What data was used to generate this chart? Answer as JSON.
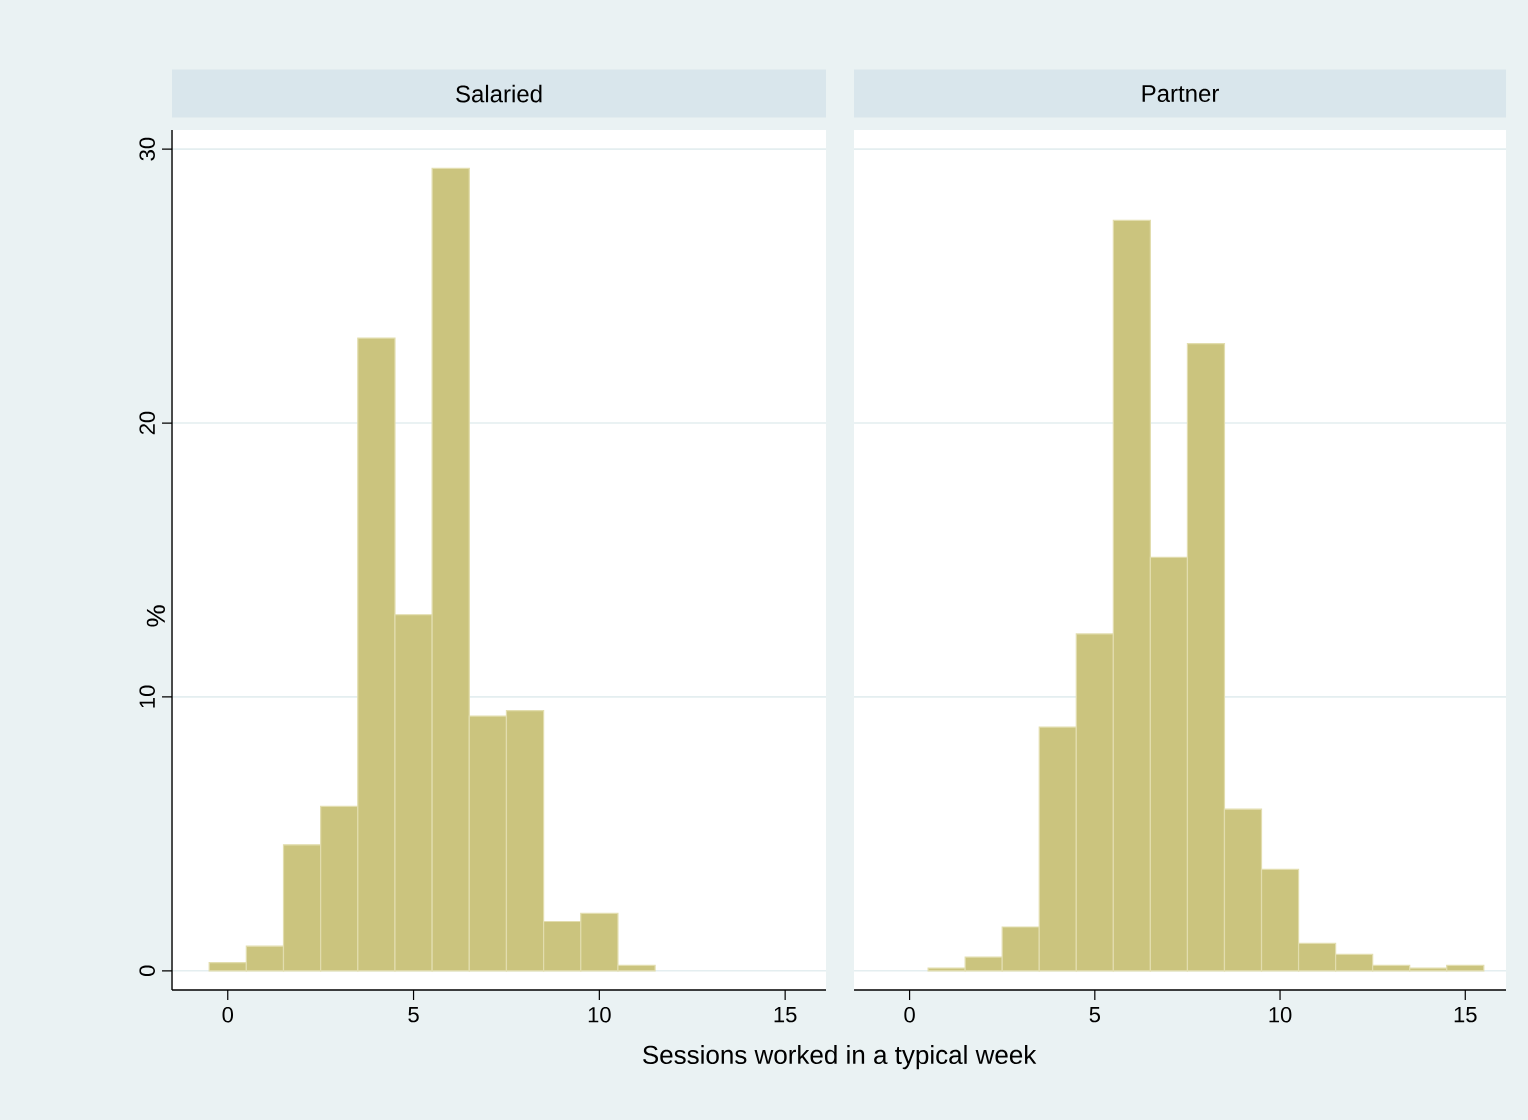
{
  "chart_data": [
    {
      "type": "histogram",
      "title": "Salaried",
      "xlabel": "Sessions worked in a typical week",
      "ylabel": "%",
      "bins": [
        -0.5,
        0.5,
        1.5,
        2.5,
        3.5,
        4.5,
        5.5,
        6.5,
        7.5,
        8.5,
        9.5,
        10.5,
        11.5
      ],
      "values": [
        0.3,
        0.9,
        4.6,
        6.0,
        23.1,
        13.0,
        29.3,
        9.3,
        9.5,
        1.8,
        2.1,
        0.2
      ],
      "color": "#cbc47e",
      "xlim": [
        -1.5,
        16.1
      ],
      "ylim": [
        -0.7,
        30.7
      ],
      "xticks": [
        0,
        5,
        10,
        15
      ],
      "yticks": [
        0,
        10,
        20,
        30
      ],
      "grid": "y"
    },
    {
      "type": "histogram",
      "title": "Partner",
      "bins": [
        0.5,
        1.5,
        2.5,
        3.5,
        4.5,
        5.5,
        6.5,
        7.5,
        8.5,
        9.5,
        10.5,
        11.5,
        12.5,
        13.5,
        14.5,
        15.5
      ],
      "values": [
        0.1,
        0.5,
        1.6,
        8.9,
        12.3,
        27.4,
        15.1,
        22.9,
        5.9,
        3.7,
        1.0,
        0.6,
        0.2,
        0.1,
        0.2
      ],
      "color": "#cbc47e",
      "xlim": [
        -1.5,
        16.1
      ],
      "ylim": [
        -0.7,
        30.7
      ],
      "xticks": [
        0,
        5,
        10,
        15
      ],
      "yticks": [
        0,
        10,
        20,
        30
      ],
      "grid": "y",
      "tick_labels": "x"
    }
  ]
}
